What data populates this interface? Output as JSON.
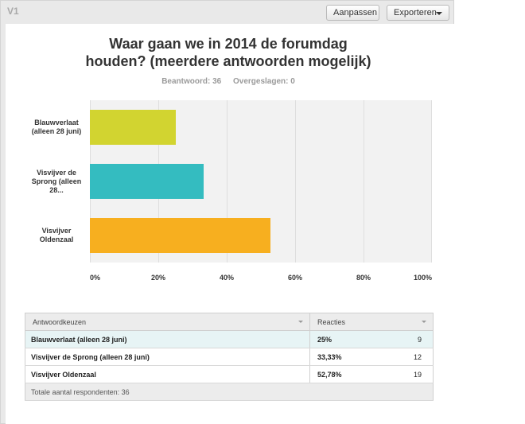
{
  "header": {
    "version_label": "V1",
    "customize_label": "Aanpassen",
    "export_label": "Exporteren"
  },
  "question": {
    "title_line1": "Waar gaan we in 2014 de forumdag",
    "title_line2": "houden? (meerdere antwoorden mogelijk)",
    "answered": "Beantwoord: 36",
    "skipped": "Overgeslagen: 0"
  },
  "chart_data": {
    "type": "bar",
    "orientation": "horizontal",
    "categories": [
      "Blauwverlaat (alleen 28 juni)",
      "Visvijver de Sprong (alleen 28 juni)",
      "Visvijver Oldenzaal"
    ],
    "category_labels": [
      "Blauwverlaat (alleen 28 juni)",
      "Visvijver de Sprong (alleen 28...",
      "Visvijver Oldenzaal"
    ],
    "values": [
      25,
      33.33,
      52.78
    ],
    "colors": [
      "#d2d430",
      "#34bcc0",
      "#f7af1f"
    ],
    "xlim": [
      0,
      100
    ],
    "xticks": [
      "0%",
      "20%",
      "40%",
      "60%",
      "80%",
      "100%"
    ],
    "grid": true
  },
  "table": {
    "headers": [
      "Antwoordkeuzen",
      "Reacties"
    ],
    "rows": [
      {
        "choice": "Blauwverlaat (alleen 28 juni)",
        "percent": "25%",
        "count": "9"
      },
      {
        "choice": "Visvijver de Sprong (alleen 28 juni)",
        "percent": "33,33%",
        "count": "12"
      },
      {
        "choice": "Visvijver Oldenzaal",
        "percent": "52,78%",
        "count": "19"
      }
    ],
    "footer": "Totale aantal respondenten: 36"
  }
}
